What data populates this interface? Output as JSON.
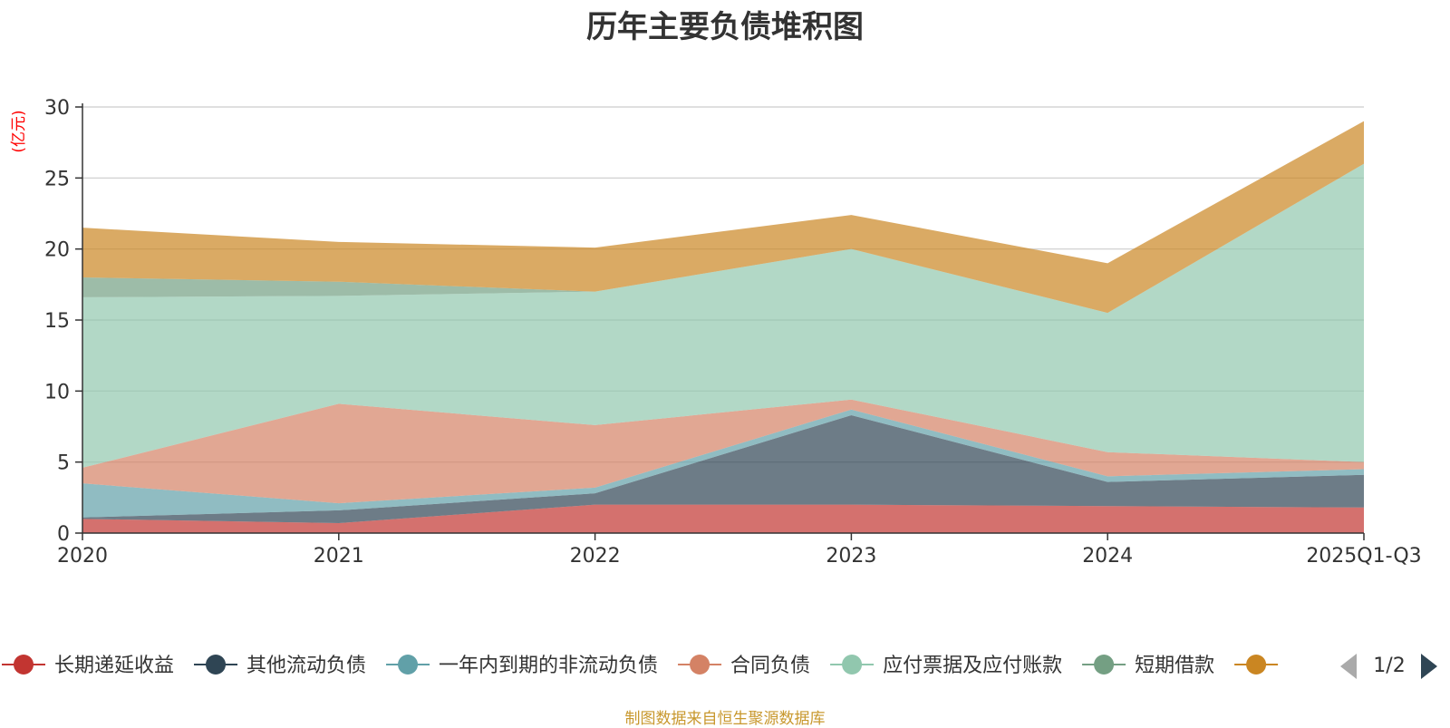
{
  "chart_data": {
    "type": "area",
    "stacked": true,
    "title": "历年主要负债堆积图",
    "ylabel": "(亿元)",
    "xlabel": "",
    "ylim": [
      0,
      30
    ],
    "yticks": [
      0,
      5,
      10,
      15,
      20,
      25,
      30
    ],
    "categories": [
      "2020",
      "2021",
      "2022",
      "2023",
      "2024",
      "2025Q1-Q3"
    ],
    "series": [
      {
        "name": "长期递延收益",
        "color": "#c23531",
        "values": [
          1.0,
          0.7,
          2.0,
          2.0,
          1.9,
          1.8
        ]
      },
      {
        "name": "其他流动负债",
        "color": "#2f4554",
        "values": [
          0.1,
          0.9,
          0.8,
          6.3,
          1.7,
          2.3
        ]
      },
      {
        "name": "一年内到期的非流动负债",
        "color": "#61a0a8",
        "values": [
          2.4,
          0.5,
          0.4,
          0.4,
          0.4,
          0.4
        ]
      },
      {
        "name": "合同负债",
        "color": "#d48265",
        "values": [
          1.1,
          7.0,
          4.4,
          0.7,
          1.7,
          0.5
        ]
      },
      {
        "name": "应付票据及应付账款",
        "color": "#91c7ae",
        "values": [
          12.0,
          7.6,
          9.4,
          10.6,
          9.8,
          21.0
        ]
      },
      {
        "name": "短期借款",
        "color": "#749f83",
        "values": [
          1.4,
          1.0,
          0.0,
          0.0,
          0.0,
          0.0
        ]
      },
      {
        "name": "",
        "color": "#ca8622",
        "values": [
          3.5,
          2.8,
          3.1,
          2.4,
          3.5,
          3.0
        ]
      }
    ],
    "legend": {
      "page": "1/2"
    },
    "note": "制图数据来自恒生聚源数据库"
  },
  "colors": {
    "axis": "#333333",
    "grid": "#cccccc",
    "ylabel": "#ff0000",
    "note": "#c8982e",
    "pager_inactive": "#aaaaaa",
    "pager_active": "#2f4554"
  }
}
